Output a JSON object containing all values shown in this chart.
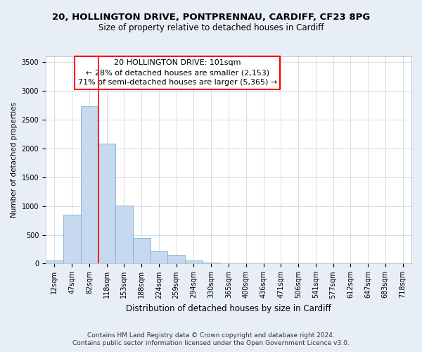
{
  "title1": "20, HOLLINGTON DRIVE, PONTPRENNAU, CARDIFF, CF23 8PG",
  "title2": "Size of property relative to detached houses in Cardiff",
  "xlabel": "Distribution of detached houses by size in Cardiff",
  "ylabel": "Number of detached properties",
  "bar_labels": [
    "12sqm",
    "47sqm",
    "82sqm",
    "118sqm",
    "153sqm",
    "188sqm",
    "224sqm",
    "259sqm",
    "294sqm",
    "330sqm",
    "365sqm",
    "400sqm",
    "436sqm",
    "471sqm",
    "506sqm",
    "541sqm",
    "577sqm",
    "612sqm",
    "647sqm",
    "683sqm",
    "718sqm"
  ],
  "bar_values": [
    55,
    855,
    2730,
    2080,
    1010,
    450,
    210,
    148,
    52,
    22,
    8,
    3,
    3,
    1,
    0,
    0,
    0,
    0,
    0,
    0,
    0
  ],
  "bar_color": "#c6d9ee",
  "bar_edge_color": "#7bafd4",
  "ylim": [
    0,
    3600
  ],
  "yticks": [
    0,
    500,
    1000,
    1500,
    2000,
    2500,
    3000,
    3500
  ],
  "red_line_x": 2.53,
  "annotation_line1": "20 HOLLINGTON DRIVE: 101sqm",
  "annotation_line2": "← 28% of detached houses are smaller (2,153)",
  "annotation_line3": "71% of semi-detached houses are larger (5,365) →",
  "footnote1": "Contains HM Land Registry data © Crown copyright and database right 2024.",
  "footnote2": "Contains public sector information licensed under the Open Government Licence v3.0.",
  "background_color": "#e8eef5",
  "plot_bg_color": "#ffffff",
  "grid_color": "#c8d0d8",
  "title1_fontsize": 9.5,
  "title2_fontsize": 8.5,
  "annotation_fontsize": 8,
  "tick_fontsize": 7,
  "ylabel_fontsize": 7.5,
  "xlabel_fontsize": 8.5,
  "footnote_fontsize": 6.5
}
